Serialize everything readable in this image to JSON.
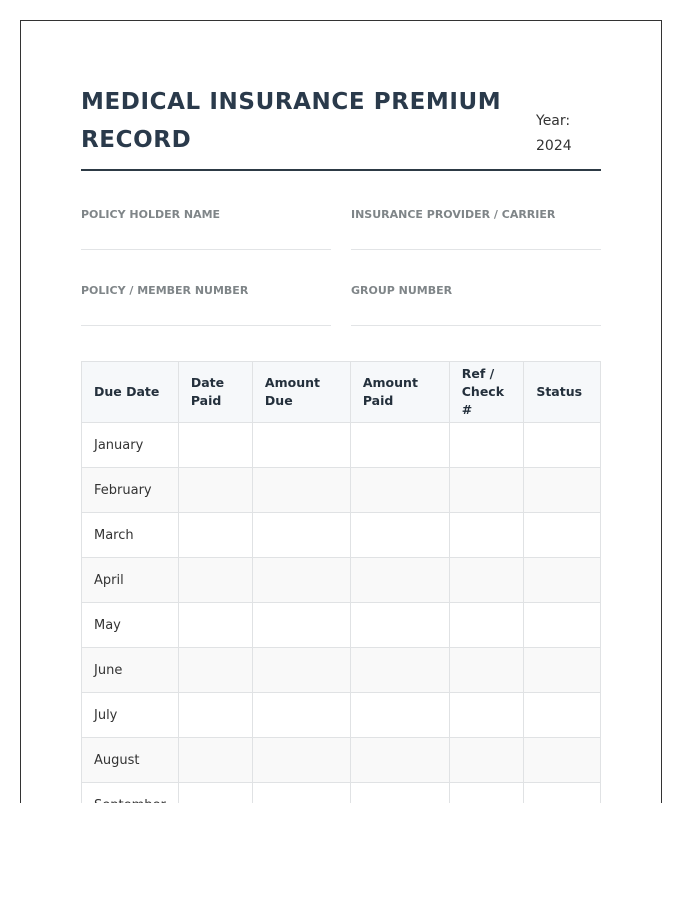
{
  "title": "MEDICAL INSURANCE PREMIUM RECORD",
  "year_label": "Year:",
  "year_value": "2024",
  "fields": [
    {
      "label": "POLICY HOLDER NAME",
      "value": ""
    },
    {
      "label": "INSURANCE PROVIDER / CARRIER",
      "value": ""
    },
    {
      "label": "POLICY / MEMBER NUMBER",
      "value": ""
    },
    {
      "label": "GROUP NUMBER",
      "value": ""
    }
  ],
  "table": {
    "headers": [
      "Due Date",
      "Date Paid",
      "Amount Due",
      "Amount Paid",
      "Ref / Check #",
      "Status"
    ],
    "rows": [
      "January",
      "February",
      "March",
      "April",
      "May",
      "June",
      "July",
      "August",
      "September"
    ]
  }
}
